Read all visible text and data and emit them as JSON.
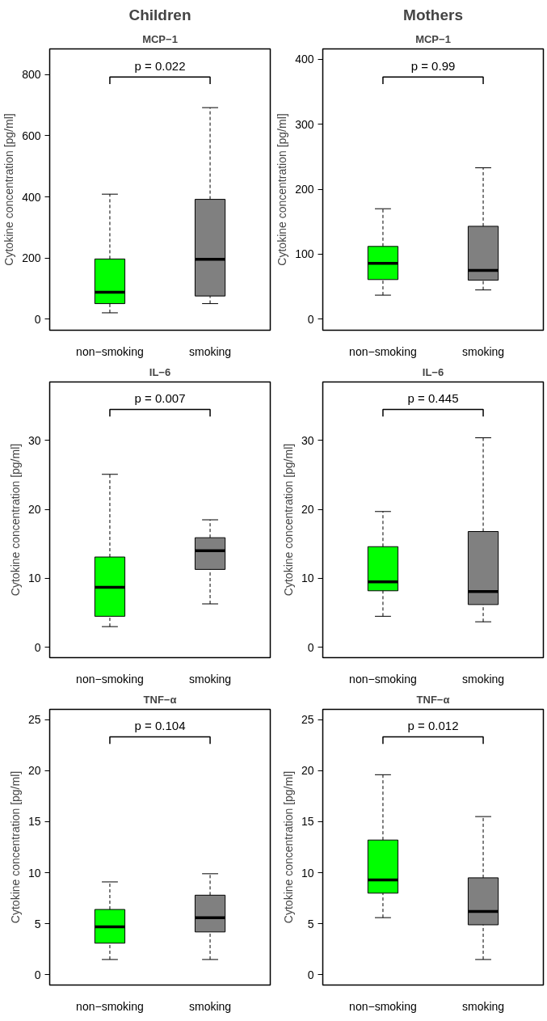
{
  "chart_data": [
    {
      "type": "box",
      "title": "Children",
      "subtitle": "MCP−1",
      "ylabel": "Cytokine concentration [pg/ml]",
      "categories": [
        "non−smoking",
        "smoking"
      ],
      "colors": [
        "#00ff00",
        "#808080"
      ],
      "boxes": [
        {
          "low": 21,
          "q1": 51,
          "median": 88,
          "q3": 197,
          "high": 409
        },
        {
          "low": 51,
          "q1": 76,
          "median": 196,
          "q3": 392,
          "high": 692
        }
      ],
      "ylim": [
        -36,
        884
      ],
      "yticks": [
        0,
        200,
        400,
        600,
        800
      ],
      "annotations": [
        "p = 0.022"
      ],
      "grid": false
    },
    {
      "type": "box",
      "title": "Mothers",
      "subtitle": "MCP−1",
      "ylabel": "Cytokine concentration [pg/ml]",
      "categories": [
        "non−smoking",
        "smoking"
      ],
      "colors": [
        "#00ff00",
        "#808080"
      ],
      "boxes": [
        {
          "low": 37,
          "q1": 61,
          "median": 86,
          "q3": 112,
          "high": 170
        },
        {
          "low": 45,
          "q1": 60,
          "median": 75,
          "q3": 143,
          "high": 233
        }
      ],
      "ylim": [
        -17,
        416
      ],
      "yticks": [
        0,
        100,
        200,
        300,
        400
      ],
      "annotations": [
        "p = 0.99"
      ],
      "grid": false
    },
    {
      "type": "box",
      "title": "IL−6",
      "ylabel": "Cytokine concentration [pg/ml]",
      "categories": [
        "non−smoking",
        "smoking"
      ],
      "colors": [
        "#00ff00",
        "#808080"
      ],
      "boxes": [
        {
          "low": 3.0,
          "q1": 4.5,
          "median": 8.7,
          "q3": 13.1,
          "high": 25.1
        },
        {
          "low": 6.3,
          "q1": 11.3,
          "median": 14.0,
          "q3": 15.9,
          "high": 18.5
        }
      ],
      "ylim": [
        -1.5,
        38.5
      ],
      "yticks": [
        0,
        10,
        20,
        30
      ],
      "annotations": [
        "p = 0.007"
      ],
      "grid": false
    },
    {
      "type": "box",
      "title": "IL−6",
      "ylabel": "Cytokine concentration [pg/ml]",
      "categories": [
        "non−smoking",
        "smoking"
      ],
      "colors": [
        "#00ff00",
        "#808080"
      ],
      "boxes": [
        {
          "low": 4.5,
          "q1": 8.2,
          "median": 9.5,
          "q3": 14.6,
          "high": 19.7
        },
        {
          "low": 3.7,
          "q1": 6.2,
          "median": 8.1,
          "q3": 16.8,
          "high": 30.4
        }
      ],
      "ylim": [
        -1.5,
        38.5
      ],
      "yticks": [
        0,
        10,
        20,
        30
      ],
      "annotations": [
        "p = 0.445"
      ],
      "grid": false
    },
    {
      "type": "box",
      "title": "TNF−α",
      "ylabel": "Cytokine concentration [pg/ml]",
      "categories": [
        "non−smoking",
        "smoking"
      ],
      "colors": [
        "#00ff00",
        "#808080"
      ],
      "boxes": [
        {
          "low": 1.5,
          "q1": 3.1,
          "median": 4.7,
          "q3": 6.4,
          "high": 9.1
        },
        {
          "low": 1.5,
          "q1": 4.2,
          "median": 5.6,
          "q3": 7.8,
          "high": 9.9
        }
      ],
      "ylim": [
        -1,
        26
      ],
      "yticks": [
        0,
        5,
        10,
        15,
        20,
        25
      ],
      "annotations": [
        "p = 0.104"
      ],
      "grid": false
    },
    {
      "type": "box",
      "title": "TNF−α",
      "ylabel": "Cytokine concentration [pg/ml]",
      "categories": [
        "non−smoking",
        "smoking"
      ],
      "colors": [
        "#00ff00",
        "#808080"
      ],
      "boxes": [
        {
          "low": 5.6,
          "q1": 8.0,
          "median": 9.3,
          "q3": 13.2,
          "high": 19.6
        },
        {
          "low": 1.5,
          "q1": 4.9,
          "median": 6.2,
          "q3": 9.5,
          "high": 15.5
        }
      ],
      "ylim": [
        -1,
        26
      ],
      "yticks": [
        0,
        5,
        10,
        15,
        20,
        25
      ],
      "annotations": [
        "p = 0.012"
      ],
      "grid": false
    }
  ]
}
